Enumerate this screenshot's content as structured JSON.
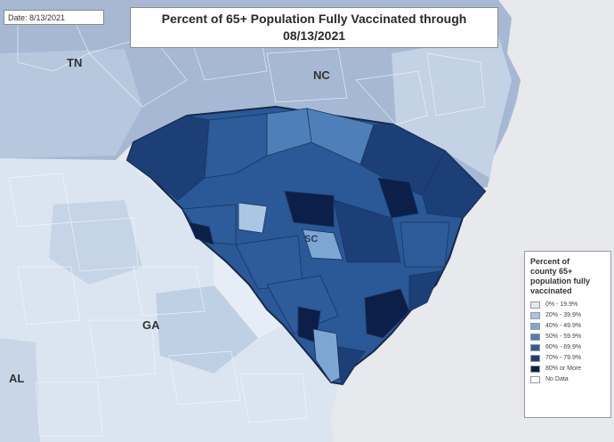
{
  "date_label": "Date: 8/13/2021",
  "title_line1": "Percent of 65+ Population Fully Vaccinated through",
  "title_line2": "08/13/2021",
  "state_labels": {
    "tn": "TN",
    "nc": "NC",
    "sc": "SC",
    "ga": "GA",
    "al": "AL"
  },
  "colors": {
    "ocean": "#e9ebee",
    "sc_outline": "#15284a",
    "county_border": "#2c4a78"
  },
  "legend": {
    "title": "Percent of county 65+ population fully vaccinated",
    "items": [
      {
        "label": "0% - 19.9%",
        "color": "#dceaf6"
      },
      {
        "label": "20% - 39.9%",
        "color": "#a9c6e4"
      },
      {
        "label": "40% - 49.9%",
        "color": "#7ea6d3"
      },
      {
        "label": "50% - 59.9%",
        "color": "#4f7fb9"
      },
      {
        "label": "60% - 69.9%",
        "color": "#2e5b99"
      },
      {
        "label": "70% - 79.9%",
        "color": "#1c3f78"
      },
      {
        "label": "80% or More",
        "color": "#0c1f48"
      },
      {
        "label": "No Data",
        "color": "#ffffff"
      }
    ]
  }
}
